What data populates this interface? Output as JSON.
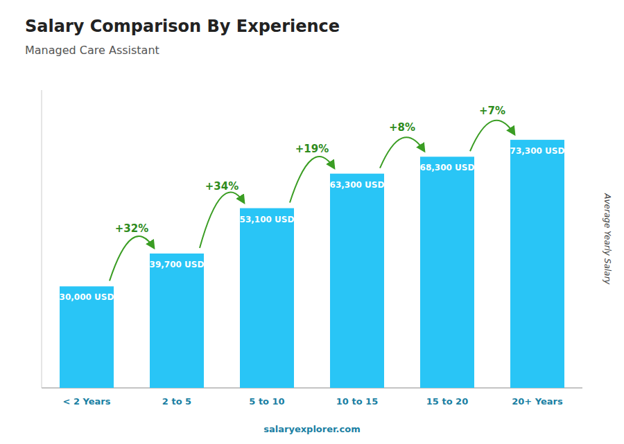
{
  "chart_data": {
    "type": "bar",
    "title": "Salary Comparison By Experience",
    "subtitle": "Managed Care Assistant",
    "categories": [
      "< 2 Years",
      "2 to 5",
      "5 to 10",
      "10 to 15",
      "15 to 20",
      "20+ Years"
    ],
    "values": [
      30000,
      39700,
      53100,
      63300,
      68300,
      73300
    ],
    "value_labels": [
      "30,000 USD",
      "39,700 USD",
      "53,100 USD",
      "63,300 USD",
      "68,300 USD",
      "73,300 USD"
    ],
    "data_labels": true,
    "annotations": [
      "+32%",
      "+34%",
      "+19%",
      "+8%",
      "+7%"
    ],
    "color": "#29C5F6",
    "ylabel": "Average Yearly Salary",
    "ylim": [
      0,
      88000
    ],
    "tick_labels": "x",
    "grid": false,
    "footer": "salaryexplorer.com"
  }
}
